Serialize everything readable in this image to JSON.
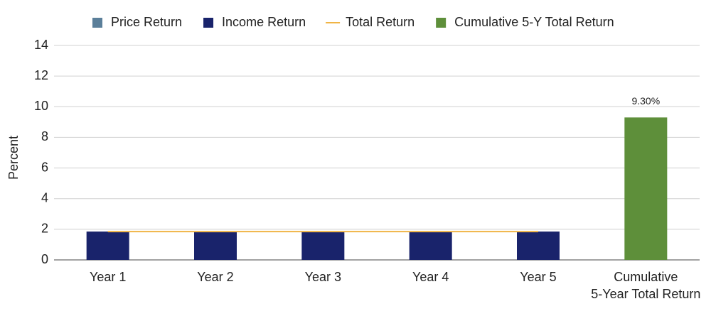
{
  "chart_data": {
    "type": "bar",
    "categories": [
      "Year 1",
      "Year 2",
      "Year 3",
      "Year 4",
      "Year 5",
      "Cumulative\n5-Year Total Return"
    ],
    "ylabel": "Percent",
    "ylim": [
      0,
      14
    ],
    "yticks": [
      0,
      2,
      4,
      6,
      8,
      10,
      12,
      14
    ],
    "grid": true,
    "legend": "top",
    "series": [
      {
        "name": "Price Return",
        "color": "#5b7f9a",
        "kind": "stack",
        "values": [
          0,
          0,
          0,
          0,
          0,
          null
        ]
      },
      {
        "name": "Income Return",
        "color": "#19236b",
        "kind": "stack",
        "values": [
          1.85,
          1.85,
          1.85,
          1.85,
          1.85,
          null
        ]
      },
      {
        "name": "Total Return",
        "color": "#f0b445",
        "kind": "line",
        "values": [
          1.85,
          1.85,
          1.85,
          1.85,
          1.85,
          null
        ]
      },
      {
        "name": "Cumulative 5-Y Total Return",
        "color": "#5e8f3a",
        "kind": "stack",
        "values": [
          null,
          null,
          null,
          null,
          null,
          9.3
        ],
        "value_labels": [
          null,
          null,
          null,
          null,
          null,
          "9.30%"
        ]
      }
    ]
  }
}
